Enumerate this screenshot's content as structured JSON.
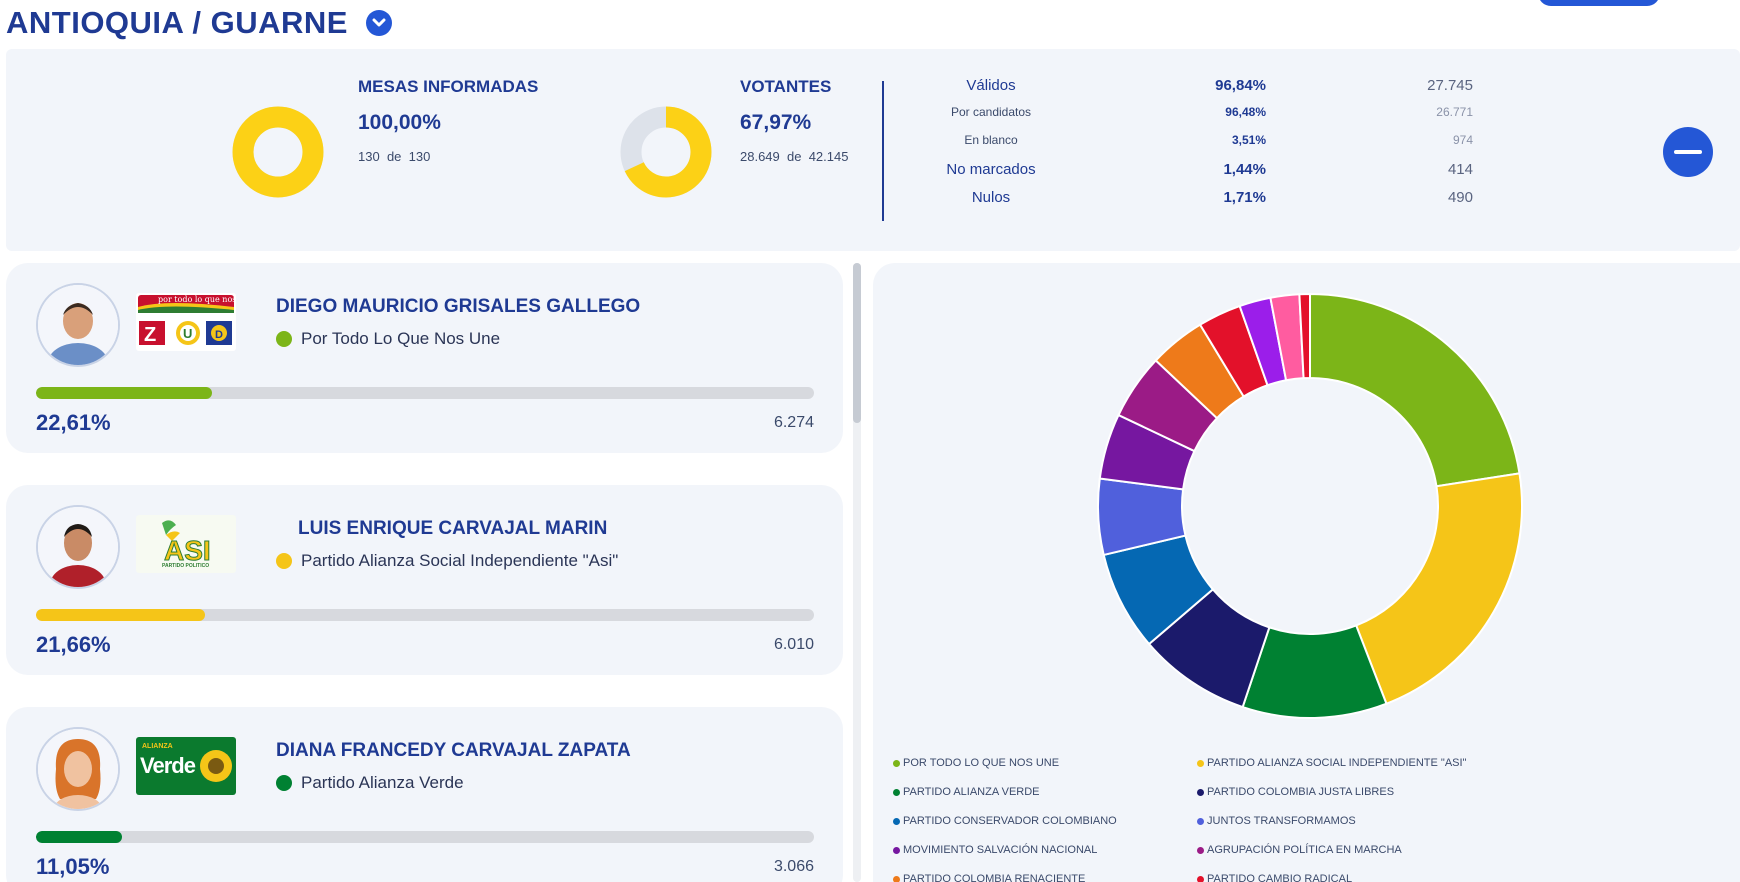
{
  "header": {
    "title": "ANTIOQUIA  /  GUARNE"
  },
  "summary": {
    "mesas": {
      "label": "MESAS INFORMADAS",
      "pct": "100,00%",
      "fraction": 1.0,
      "count": "130",
      "of": "de",
      "total": "130"
    },
    "votantes": {
      "label": "VOTANTES",
      "pct": "67,97%",
      "fraction": 0.6797,
      "count": "28.649",
      "of": "de",
      "total": "42.145"
    },
    "rows": [
      {
        "label": "Válidos",
        "pct": "96,84%",
        "num": "27.745",
        "size": "big"
      },
      {
        "label": "Por candidatos",
        "pct": "96,48%",
        "num": "26.771",
        "size": "small"
      },
      {
        "label": "En blanco",
        "pct": "3,51%",
        "num": "974",
        "size": "small"
      },
      {
        "label": "No marcados",
        "pct": "1,44%",
        "num": "414",
        "size": "big"
      },
      {
        "label": "Nulos",
        "pct": "1,71%",
        "num": "490",
        "size": "big"
      }
    ]
  },
  "candidates": [
    {
      "name": "DIEGO MAURICIO GRISALES GALLEGO",
      "party": "Por Todo Lo Que Nos Une",
      "color": "#7cb518",
      "pct": "22,61%",
      "fraction": 0.2261,
      "votes": "6.274"
    },
    {
      "name": "LUIS ENRIQUE CARVAJAL MARIN",
      "party": "Partido Alianza Social Independiente \"Asi\"",
      "color": "#f5c518",
      "pct": "21,66%",
      "fraction": 0.2166,
      "votes": "6.010"
    },
    {
      "name": "DIANA FRANCEDY CARVAJAL ZAPATA",
      "party": "Partido Alianza Verde",
      "color": "#008132",
      "pct": "11,05%",
      "fraction": 0.1105,
      "votes": "3.066"
    }
  ],
  "logo_texts": {
    "l1_banner": "por todo lo que nos une",
    "l2_name": "ASI",
    "l2_sub": "PARTIDO POLITICO",
    "l3_small": "ALIANZA",
    "l3_name": "Verde"
  },
  "chart_data": {
    "type": "pie",
    "variant": "donut",
    "series": [
      {
        "name": "POR TODO LO QUE NOS UNE",
        "value": 22.61,
        "color": "#7cb518"
      },
      {
        "name": "PARTIDO ALIANZA SOCIAL INDEPENDIENTE \"ASI\"",
        "value": 21.66,
        "color": "#f5c518"
      },
      {
        "name": "PARTIDO ALIANZA VERDE",
        "value": 11.05,
        "color": "#008132"
      },
      {
        "name": "PARTIDO COLOMBIA JUSTA LIBRES",
        "value": 8.6,
        "color": "#1b1a6b"
      },
      {
        "name": "PARTIDO CONSERVADOR COLOMBIANO",
        "value": 7.6,
        "color": "#0568b3"
      },
      {
        "name": "JUNTOS TRANSFORMAMOS",
        "value": 5.8,
        "color": "#5060dc"
      },
      {
        "name": "MOVIMIENTO SALVACIÓN NACIONAL",
        "value": 5.0,
        "color": "#7617a0"
      },
      {
        "name": "AGRUPACIÓN POLÍTICA EN MARCHA",
        "value": 5.0,
        "color": "#9b1b86"
      },
      {
        "name": "PARTIDO COLOMBIA RENACIENTE",
        "value": 4.3,
        "color": "#ee7a1a"
      },
      {
        "name": "PARTIDO CAMBIO RADICAL",
        "value": 3.3,
        "color": "#e3112a"
      },
      {
        "name": "",
        "value": 2.4,
        "color": "#9b1eea"
      },
      {
        "name": "",
        "value": 2.2,
        "color": "#ff5ca0"
      },
      {
        "name": "",
        "value": 0.8,
        "color": "#e3112a"
      }
    ]
  }
}
